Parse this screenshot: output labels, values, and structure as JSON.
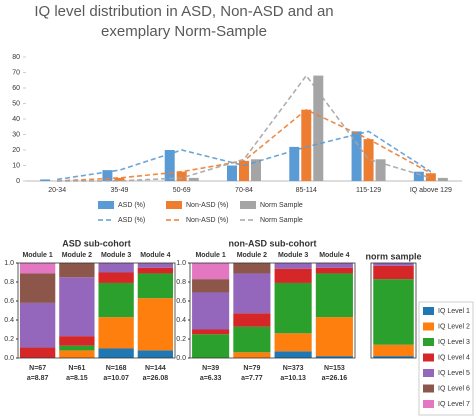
{
  "chart_data": [
    {
      "type": "bar",
      "title": "IQ level distribution in ASD, Non-ASD and an exemplary Norm-Sample",
      "categories": [
        "20-34",
        "35-49",
        "50-69",
        "70-84",
        "85-114",
        "115-129",
        "IQ above 129"
      ],
      "series": [
        {
          "name": "ASD (%)",
          "color": "#5b9bd5",
          "values": [
            1,
            7,
            20,
            10,
            22,
            32,
            6
          ]
        },
        {
          "name": "Non-ASD (%)",
          "color": "#ed7d31",
          "values": [
            0,
            2,
            6,
            13,
            46,
            27,
            5
          ]
        },
        {
          "name": "Norm Sample",
          "color": "#a5a5a5",
          "values": [
            0,
            0.1,
            2,
            14,
            68,
            14,
            2
          ]
        }
      ],
      "line_overlay": true,
      "ylim": [
        0,
        80
      ],
      "yticks": [
        0,
        10,
        20,
        30,
        40,
        50,
        60,
        70,
        80
      ]
    },
    {
      "type": "stacked_bar",
      "title": "ASD sub-cohort",
      "categories": [
        "Module 1",
        "Module 2",
        "Module 3",
        "Module 4"
      ],
      "n_labels": [
        "N=67",
        "N=61",
        "N=168",
        "N=144"
      ],
      "a_labels": [
        "a=8.87",
        "a=8.15",
        "a=10.07",
        "a=26.08"
      ],
      "series": [
        {
          "color": "#1f77b4",
          "values": [
            0,
            0,
            0.1,
            0.08
          ]
        },
        {
          "color": "#ff7f0e",
          "values": [
            0,
            0.08,
            0.33,
            0.55
          ]
        },
        {
          "color": "#2ca02c",
          "values": [
            0,
            0.05,
            0.36,
            0.26
          ]
        },
        {
          "color": "#d62728",
          "values": [
            0.11,
            0.1,
            0.11,
            0.06
          ]
        },
        {
          "color": "#9467bd",
          "values": [
            0.47,
            0.62,
            0.1,
            0.05
          ]
        },
        {
          "color": "#8c564b",
          "values": [
            0.31,
            0.15,
            0,
            0
          ]
        },
        {
          "color": "#e377c2",
          "values": [
            0.11,
            0,
            0,
            0
          ]
        }
      ],
      "ylim": [
        0,
        1
      ],
      "yticks": [
        {
          "value": 0,
          "label": "0.0"
        },
        0.2,
        0.4,
        0.6,
        0.8,
        {
          "value": 1,
          "label": "1.0"
        }
      ]
    },
    {
      "type": "stacked_bar",
      "title": "non-ASD sub-cohort",
      "categories": [
        "Module 1",
        "Module 2",
        "Module 3",
        "Module 4"
      ],
      "n_labels": [
        "N=39",
        "N=79",
        "N=373",
        "N=153"
      ],
      "a_labels": [
        "a=6.33",
        "a=7.77",
        "a=10.13",
        "a=26.16"
      ],
      "series": [
        {
          "color": "#1f77b4",
          "values": [
            0,
            0,
            0.07,
            0.02
          ]
        },
        {
          "color": "#ff7f0e",
          "values": [
            0,
            0.06,
            0.19,
            0.41
          ]
        },
        {
          "color": "#2ca02c",
          "values": [
            0.25,
            0.27,
            0.53,
            0.46
          ]
        },
        {
          "color": "#d62728",
          "values": [
            0.05,
            0.14,
            0.15,
            0.06
          ]
        },
        {
          "color": "#9467bd",
          "values": [
            0.39,
            0.42,
            0.06,
            0.05
          ]
        },
        {
          "color": "#8c564b",
          "values": [
            0.14,
            0.11,
            0,
            0
          ]
        },
        {
          "color": "#e377c2",
          "values": [
            0.17,
            0,
            0,
            0
          ]
        }
      ],
      "ylim": [
        0,
        1
      ],
      "yticks": [
        {
          "value": 0,
          "label": "0.0"
        },
        0.2,
        0.4,
        0.6,
        0.8,
        {
          "value": 1,
          "label": "1.0"
        }
      ]
    },
    {
      "type": "stacked_bar",
      "title": "norm sample",
      "categories": [
        null
      ],
      "series": [
        {
          "name": "IQ Level 1",
          "color": "#1f77b4",
          "values": [
            0.02
          ]
        },
        {
          "name": "IQ Level 2",
          "color": "#ff7f0e",
          "values": [
            0.12
          ]
        },
        {
          "name": "IQ Level 3",
          "color": "#2ca02c",
          "values": [
            0.69
          ]
        },
        {
          "name": "IQ Level 4",
          "color": "#d62728",
          "values": [
            0.14
          ]
        },
        {
          "name": "IQ Level 5",
          "color": "#9467bd",
          "values": [
            0.03
          ]
        },
        {
          "name": "IQ Level 6",
          "color": "#8c564b",
          "values": [
            0
          ]
        },
        {
          "name": "IQ Level 7",
          "color": "#e377c2",
          "values": [
            0
          ]
        }
      ],
      "legend": "right",
      "ylim": [
        0,
        1
      ]
    }
  ]
}
